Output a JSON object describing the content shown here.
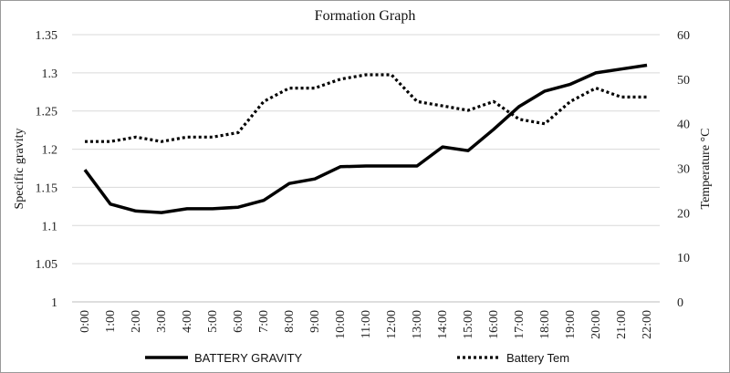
{
  "chart_data": {
    "type": "line",
    "title": "Formation Graph",
    "ylabel": "Specific gravity",
    "y2label": "Temperature °C",
    "xlabel": "",
    "categories": [
      "0:00",
      "1:00",
      "2:00",
      "3:00",
      "4:00",
      "5:00",
      "6:00",
      "7:00",
      "8:00",
      "9:00",
      "10:00",
      "11:00",
      "12:00",
      "13:00",
      "14:00",
      "15:00",
      "16:00",
      "17:00",
      "18:00",
      "19:00",
      "20:00",
      "21:00",
      "22:00"
    ],
    "ylim": [
      1,
      1.35
    ],
    "y_ticks": [
      "1",
      "1.05",
      "1.1",
      "1.15",
      "1.2",
      "1.25",
      "1.3",
      "1.35"
    ],
    "y2lim": [
      0,
      60
    ],
    "y2_ticks": [
      "0",
      "10",
      "20",
      "30",
      "40",
      "50",
      "60"
    ],
    "grid": true,
    "legend_position": "bottom",
    "series": [
      {
        "name": "BATTERY  GRAVITY",
        "axis": "left",
        "style": "solid",
        "color": "#000000",
        "values": [
          1.173,
          1.128,
          1.119,
          1.117,
          1.122,
          1.122,
          1.124,
          1.133,
          1.155,
          1.161,
          1.177,
          1.178,
          1.178,
          1.178,
          1.203,
          1.198,
          1.226,
          1.256,
          1.276,
          1.285,
          1.3,
          1.305,
          1.31
        ]
      },
      {
        "name": "Battery Tem",
        "axis": "right",
        "style": "dotted",
        "color": "#000000",
        "values": [
          36,
          36,
          37,
          36,
          37,
          37,
          38,
          45,
          48,
          48,
          50,
          51,
          51,
          45,
          44,
          43,
          45,
          41,
          40,
          45,
          48,
          46,
          46
        ]
      }
    ]
  }
}
